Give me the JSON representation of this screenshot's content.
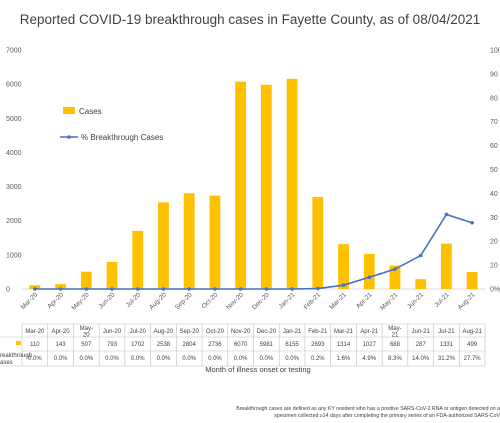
{
  "chart_data": {
    "type": "bar",
    "title": "Reported COVID-19 breakthrough cases in Fayette County, as of 08/04/2021",
    "xlabel": "Month of illness onset or testing",
    "ylabel": "",
    "ylim": [
      0,
      7000
    ],
    "y2lim": [
      0,
      100
    ],
    "y_ticks": [
      "0",
      "1000",
      "2000",
      "3000",
      "4000",
      "5000",
      "6000",
      "7000"
    ],
    "y2_ticks": [
      "0%",
      "10",
      "20",
      "30",
      "40",
      "50",
      "60",
      "70",
      "80",
      "90",
      "100"
    ],
    "categories": [
      "Mar-20",
      "Apr-20",
      "May-20",
      "Jun-20",
      "Jul-20",
      "Aug-20",
      "Sep-20",
      "Oct-20",
      "Nov-20",
      "Dec-20",
      "Jan-21",
      "Feb-21",
      "Mar-21",
      "Apr-21",
      "May-21",
      "Jun-21",
      "Jul-21",
      "Aug-21"
    ],
    "table_categories": [
      "Mar-20",
      "Apr-20",
      "May-\n20",
      "Jun-20",
      "Jul-20",
      "Aug-20",
      "Sep-20",
      "Oct-20",
      "Nov-20",
      "Dec-20",
      "Jan-21",
      "Feb-21",
      "Mar-21",
      "Apr-21",
      "May-\n21",
      "Jun-21",
      "Jul-21",
      "Aug-21"
    ],
    "series": [
      {
        "name": "Cases",
        "type": "bar",
        "color": "#FFC000",
        "values": [
          110,
          143,
          507,
          793,
          1702,
          2538,
          2804,
          2736,
          6070,
          5981,
          6155,
          2693,
          1314,
          1027,
          688,
          287,
          1331,
          499
        ],
        "labels": [
          "110",
          "143",
          "507",
          "793",
          "1702",
          "2538",
          "2804",
          "2736",
          "6070",
          "5981",
          "6155",
          "2693",
          "1314",
          "1027",
          "688",
          "287",
          "1331",
          "499"
        ]
      },
      {
        "name": "% Breakthrough Cases",
        "type": "line",
        "axis": "secondary",
        "color": "#4472C4",
        "values": [
          0.0,
          0.0,
          0.0,
          0.0,
          0.0,
          0.0,
          0.0,
          0.0,
          0.0,
          0.0,
          0.0,
          0.2,
          1.6,
          4.9,
          8.3,
          14.0,
          31.2,
          27.7
        ],
        "labels": [
          "0.0%",
          "0.0%",
          "0.0%",
          "0.0%",
          "0.0%",
          "0.0%",
          "0.0%",
          "0.0%",
          "0.0%",
          "0.0%",
          "0.0%",
          "0.2%",
          "1.6%",
          "4.9%",
          "8.3%",
          "14.0%",
          "31.2%",
          "27.7%"
        ]
      }
    ],
    "table_row_labels": [
      "",
      "reakthrough\nases"
    ],
    "footnote": [
      "Breakthrough cases are defined as any KY resident who has a positive SARS-CoV-2 RNA or antigen detected on a",
      "specimen collected ≥14 days after completing the primary series of an FDA-authorized SARS-CoV"
    ],
    "legend_position": "top-left",
    "grid": false
  },
  "colors": {
    "bar": "#FFC000",
    "line": "#4472C4",
    "axis": "#d9d9d9",
    "text": "#404040"
  }
}
